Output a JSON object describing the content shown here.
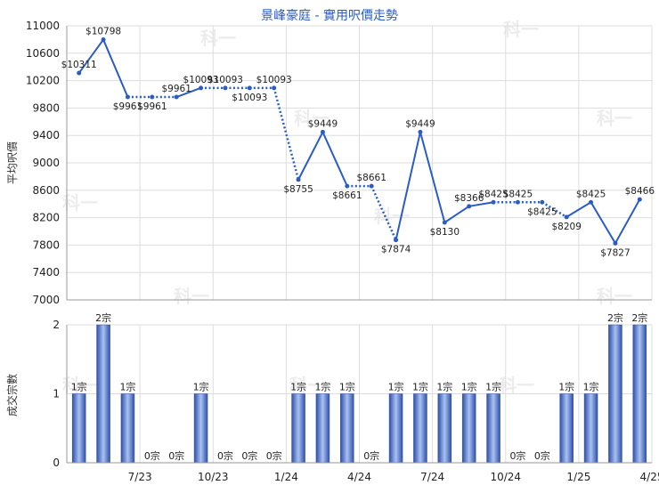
{
  "chart_data": [
    {
      "type": "line",
      "title": "景峰豪庭 - 實用呎價走勢",
      "ylabel": "平均呎價",
      "ylim": [
        7000,
        11000
      ],
      "yticks": [
        7000,
        7400,
        7800,
        8200,
        8600,
        9000,
        9400,
        9800,
        10200,
        10600,
        11000
      ],
      "x_tick_labels": [
        "7/23",
        "10/23",
        "1/24",
        "4/24",
        "7/24",
        "10/24",
        "1/25",
        "4/25"
      ],
      "grid": true,
      "points": [
        {
          "label": "$10311",
          "value": 10311,
          "interpolated": false
        },
        {
          "label": "$10798",
          "value": 10798,
          "interpolated": false
        },
        {
          "label": "$9961",
          "value": 9961,
          "interpolated": false
        },
        {
          "label": "$9961",
          "value": 9961,
          "interpolated": true
        },
        {
          "label": "$9961",
          "value": 9961,
          "interpolated": false
        },
        {
          "label": "$10093",
          "value": 10093,
          "interpolated": false
        },
        {
          "label": "$10093",
          "value": 10093,
          "interpolated": true
        },
        {
          "label": "$10093",
          "value": 10093,
          "interpolated": true
        },
        {
          "label": "$10093",
          "value": 10093,
          "interpolated": true
        },
        {
          "label": "$8755",
          "value": 8755,
          "interpolated": false
        },
        {
          "label": "$9449",
          "value": 9449,
          "interpolated": false
        },
        {
          "label": "$8661",
          "value": 8661,
          "interpolated": false
        },
        {
          "label": "$8661",
          "value": 8661,
          "interpolated": true
        },
        {
          "label": "$7874",
          "value": 7874,
          "interpolated": false
        },
        {
          "label": "$9449",
          "value": 9449,
          "interpolated": false
        },
        {
          "label": "$8130",
          "value": 8130,
          "interpolated": false
        },
        {
          "label": "$8366",
          "value": 8366,
          "interpolated": false
        },
        {
          "label": "$8425",
          "value": 8425,
          "interpolated": false
        },
        {
          "label": "$8425",
          "value": 8425,
          "interpolated": true
        },
        {
          "label": "$8425",
          "value": 8425,
          "interpolated": true
        },
        {
          "label": "$8209",
          "value": 8209,
          "interpolated": false
        },
        {
          "label": "$8425",
          "value": 8425,
          "interpolated": false
        },
        {
          "label": "$7827",
          "value": 7827,
          "interpolated": false
        },
        {
          "label": "$8466",
          "value": 8466,
          "interpolated": false
        }
      ],
      "colors": {
        "line": "#2a5cc8",
        "grid": "#dddddd"
      },
      "watermark": "科一"
    },
    {
      "type": "bar",
      "ylabel": "成交宗數",
      "ylim": [
        0,
        2
      ],
      "yticks": [
        0,
        1,
        2
      ],
      "unit": "宗",
      "x_tick_labels": [
        "7/23",
        "10/23",
        "1/24",
        "4/24",
        "7/24",
        "10/24",
        "1/25",
        "4/25"
      ],
      "values": [
        1,
        2,
        1,
        0,
        0,
        1,
        0,
        0,
        0,
        1,
        1,
        1,
        0,
        1,
        1,
        1,
        1,
        1,
        0,
        0,
        1,
        1,
        2,
        2
      ],
      "colors": {
        "bar_dark": "#2f4fa8",
        "bar_light": "#8fb0ee"
      }
    }
  ]
}
